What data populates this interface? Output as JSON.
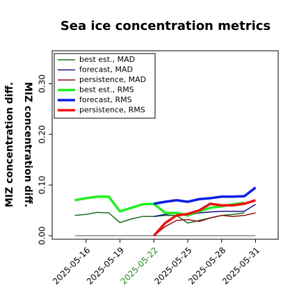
{
  "chart_data": {
    "type": "line",
    "title": "Sea ice concentration metrics",
    "y_label": "MIZ concentration diff.",
    "x": [
      "2025-05-15",
      "2025-05-16",
      "2025-05-17",
      "2025-05-18",
      "2025-05-19",
      "2025-05-20",
      "2025-05-21",
      "2025-05-22",
      "2025-05-23",
      "2025-05-24",
      "2025-05-25",
      "2025-05-26",
      "2025-05-27",
      "2025-05-28",
      "2025-05-29",
      "2025-05-30",
      "2025-05-31"
    ],
    "series": [
      {
        "name": "best est., MAD",
        "color": "#1a6b1a",
        "width": 1.5,
        "values": [
          0.04,
          0.042,
          0.046,
          0.045,
          0.026,
          0.033,
          0.038,
          0.038,
          0.04,
          0.04,
          0.025,
          0.03,
          0.035,
          0.04,
          0.042,
          0.045,
          null
        ]
      },
      {
        "name": "forecast, MAD",
        "color": "#101080",
        "width": 1.5,
        "values": [
          null,
          null,
          null,
          null,
          null,
          null,
          null,
          0.038,
          0.042,
          0.044,
          0.04,
          0.045,
          0.047,
          0.048,
          0.048,
          0.048,
          0.062
        ]
      },
      {
        "name": "persistence, MAD",
        "color": "#8b1010",
        "width": 1.5,
        "values": [
          null,
          null,
          null,
          null,
          null,
          null,
          null,
          0.0,
          0.018,
          0.03,
          0.032,
          0.028,
          0.035,
          0.04,
          0.038,
          0.04,
          0.045
        ]
      },
      {
        "name": "best est., RMS",
        "color": "#22ee22",
        "width": 3.5,
        "values": [
          0.07,
          0.074,
          0.077,
          0.077,
          0.048,
          0.055,
          0.062,
          0.063,
          0.045,
          0.045,
          0.04,
          0.048,
          0.055,
          0.058,
          0.062,
          0.065,
          null
        ]
      },
      {
        "name": "forecast, RMS",
        "color": "#0a1ee6",
        "width": 3.5,
        "values": [
          null,
          null,
          null,
          null,
          null,
          null,
          null,
          0.063,
          0.067,
          0.07,
          0.067,
          0.072,
          0.074,
          0.077,
          0.077,
          0.078,
          0.095
        ]
      },
      {
        "name": "persistence, RMS",
        "color": "#ee1010",
        "width": 3.5,
        "values": [
          null,
          null,
          null,
          null,
          null,
          null,
          null,
          0.0,
          0.025,
          0.04,
          0.043,
          0.05,
          0.063,
          0.06,
          0.06,
          0.063,
          0.07
        ]
      }
    ],
    "zero_line": 0,
    "zero_line_color": "#888888",
    "xlim": [
      "2025-05-13",
      "2025-06-02"
    ],
    "xticks": [
      "2025-05-16",
      "2025-05-19",
      "2025-05-22",
      "2025-05-25",
      "2025-05-28",
      "2025-05-31"
    ],
    "xtick_label_colors": [
      "#000000",
      "#000000",
      "#228b22",
      "#000000",
      "#000000",
      "#000000"
    ],
    "ylim": [
      -0.007,
      0.365
    ],
    "yticks": [
      {
        "value": 0,
        "label": "0.00"
      },
      {
        "value": 0.1,
        "label": "0.10"
      },
      {
        "value": 0.2,
        "label": "0.20"
      },
      {
        "value": 0.3,
        "label": "0.30"
      }
    ],
    "legend": "upper left"
  }
}
